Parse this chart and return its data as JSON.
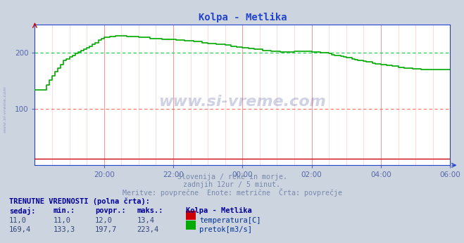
{
  "title": "Kolpa - Metlika",
  "bg_color": "#ccd4e0",
  "plot_bg_color": "#ffffff",
  "grid_color_major": "#ff8888",
  "grid_color_minor": "#ffcccc",
  "ylabel_color": "#5566aa",
  "axis_color": "#2244cc",
  "title_color": "#2244cc",
  "y_min": 0,
  "y_max": 250,
  "y_ticks": [
    100,
    200
  ],
  "x_tick_labels": [
    "20:00",
    "22:00",
    "00:00",
    "02:00",
    "04:00",
    "06:00"
  ],
  "subtitle_lines": [
    "Slovenija / reke in morje.",
    "zadnjih 12ur / 5 minut.",
    "Meritve: povprečne  Enote: metrične  Črta: povprečje"
  ],
  "temp_color": "#cc0000",
  "flow_color": "#00aa00",
  "ref_line_color_red": "#ff6666",
  "ref_line_color_green": "#00cc44",
  "watermark_text": "www.si-vreme.com",
  "watermark_color": "#223388",
  "watermark_alpha": 0.22,
  "table_header_color": "#000099",
  "table_text_color": "#003399",
  "table_value_color": "#334477",
  "legend_title": "Kolpa - Metlika",
  "temp_label": "temperatura[C]",
  "flow_label": "pretok[m3/s]",
  "current_label": "TRENUTNE VREDNOSTI (polna črta):",
  "col_headers": [
    "sedaj:",
    "min.:",
    "povpr.:",
    "maks.:"
  ],
  "temp_row": [
    "11,0",
    "11,0",
    "12,0",
    "13,4"
  ],
  "flow_row": [
    "169,4",
    "133,3",
    "197,7",
    "223,4"
  ],
  "n_points": 145
}
